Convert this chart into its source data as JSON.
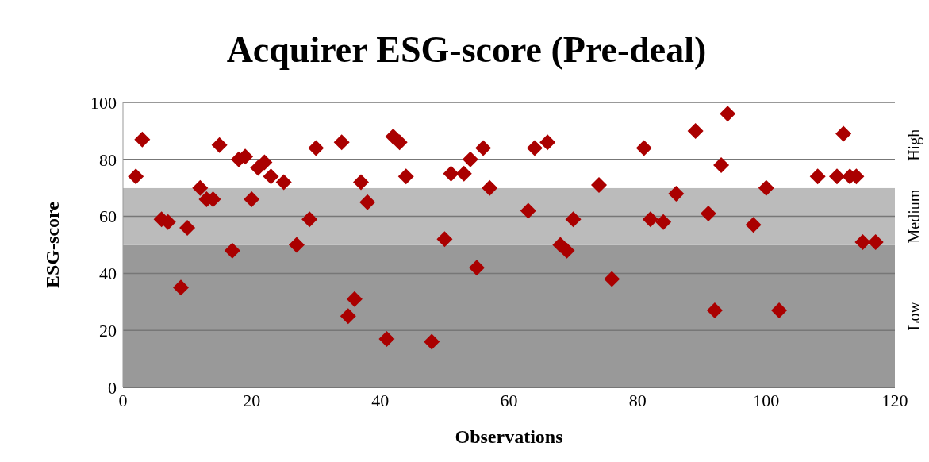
{
  "chart_data": {
    "type": "scatter",
    "title": "Acquirer ESG-score (Pre-deal)",
    "xlabel": "Observations",
    "ylabel": "ESG-score",
    "x": [
      2,
      3,
      6,
      7,
      9,
      10,
      12,
      13,
      14,
      15,
      17,
      18,
      19,
      20,
      21,
      22,
      23,
      25,
      27,
      29,
      30,
      34,
      35,
      36,
      37,
      38,
      41,
      42,
      43,
      44,
      48,
      50,
      51,
      53,
      54,
      55,
      56,
      57,
      63,
      64,
      66,
      68,
      69,
      70,
      74,
      76,
      81,
      82,
      84,
      86,
      89,
      91,
      92,
      93,
      94,
      98,
      100,
      102,
      108,
      111,
      112,
      113,
      114,
      115,
      117
    ],
    "series": [
      {
        "color": "#aa0000",
        "values": [
          74,
          87,
          59,
          58,
          35,
          56,
          70,
          66,
          66,
          85,
          48,
          80,
          81,
          66,
          77,
          79,
          74,
          72,
          50,
          59,
          84,
          86,
          25,
          31,
          72,
          65,
          17,
          88,
          86,
          74,
          16,
          52,
          75,
          75,
          80,
          42,
          84,
          70,
          62,
          84,
          86,
          50,
          48,
          59,
          71,
          38,
          84,
          59,
          58,
          68,
          90,
          61,
          27,
          78,
          96,
          57,
          70,
          27,
          74,
          74,
          89,
          74,
          74,
          51,
          51
        ]
      }
    ],
    "xlim": [
      0,
      120
    ],
    "xticks": [
      0,
      20,
      40,
      60,
      80,
      100,
      120
    ],
    "ylim": [
      0,
      100
    ],
    "yticks": [
      0,
      20,
      40,
      60,
      80,
      100
    ],
    "bands": [
      {
        "axis": "y",
        "from": 0,
        "to": 50,
        "label": "Low",
        "color": "#999999"
      },
      {
        "axis": "y",
        "from": 50,
        "to": 70,
        "label": "Medium",
        "color": "#bbbbbb"
      },
      {
        "axis": "y",
        "from": 70,
        "to": 100,
        "label": "High",
        "color": "#ffffff"
      }
    ],
    "grid": "y",
    "marker": "diamond"
  }
}
